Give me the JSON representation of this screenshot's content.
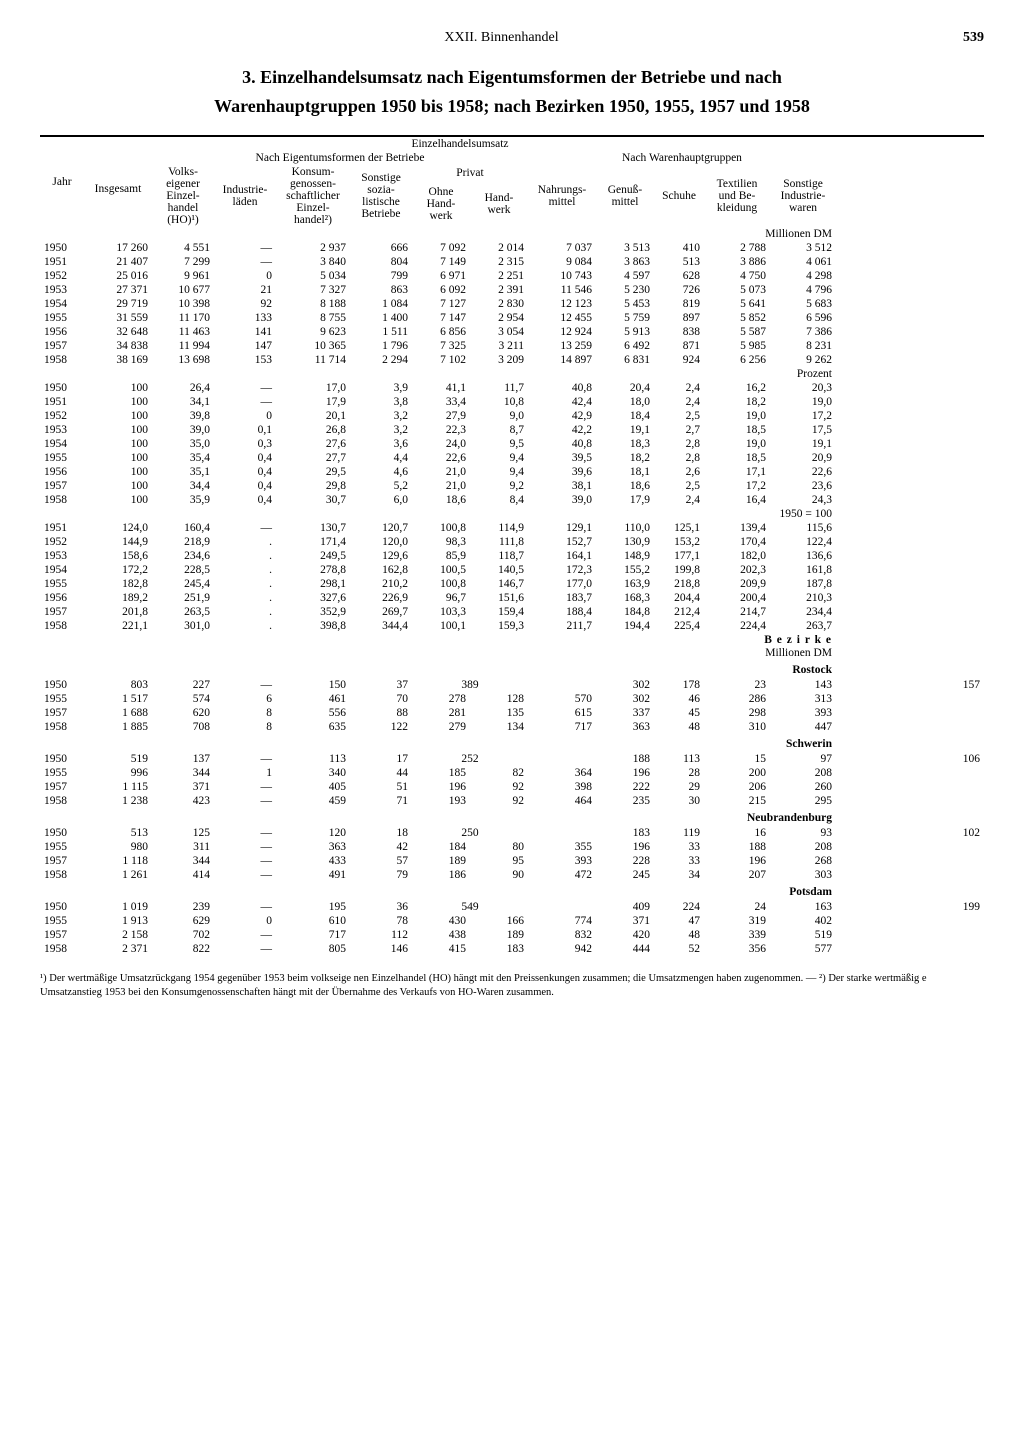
{
  "page": {
    "chapter": "XXII. Binnenhandel",
    "number": "539"
  },
  "title_line1": "3. Einzelhandelsumsatz nach Eigentumsformen der Betriebe und nach",
  "title_line2": "Warenhauptgruppen 1950 bis 1958; nach Bezirken 1950, 1955, 1957 und 1958",
  "headers": {
    "group_total": "Einzelhandelsumsatz",
    "eigentum": "Nach Eigentumsformen der Betriebe",
    "warengruppen": "Nach Warenhauptgruppen",
    "jahr": "Jahr",
    "insgesamt": "Insgesamt",
    "ho": "Volks-\neigener\nEinzel-\nhandel\n(HO)¹)",
    "industrie": "Industrie-\nläden",
    "konsum": "Konsum-\ngenossen-\nschaftlicher\nEinzel-\nhandel²)",
    "sozial": "Sonstige\nsozia-\nlistische\nBetriebe",
    "privat": "Privat",
    "ohne_hand": "Ohne\nHand-\nwerk",
    "hand": "Hand-\nwerk",
    "nahrung": "Nahrungs-\nmittel",
    "genuss": "Genuß-\nmittel",
    "schuhe": "Schuhe",
    "textil": "Textilien\nund Be-\nkleidung",
    "sonstige": "Sonstige\nIndustrie-\nwaren"
  },
  "sections": {
    "mio_dm": "Millionen DM",
    "prozent": "Prozent",
    "index": "1950 = 100",
    "bezirke": "B e z i r k e",
    "bezirke_sub": "Millionen DM",
    "rostock": "Rostock",
    "schwerin": "Schwerin",
    "neubrandenburg": "Neubrandenburg",
    "potsdam": "Potsdam"
  },
  "mio_dm": [
    [
      "1950",
      "17 260",
      "4 551",
      "—",
      "2 937",
      "666",
      "7 092",
      "2 014",
      "7 037",
      "3 513",
      "410",
      "2 788",
      "3 512"
    ],
    [
      "1951",
      "21 407",
      "7 299",
      "—",
      "3 840",
      "804",
      "7 149",
      "2 315",
      "9 084",
      "3 863",
      "513",
      "3 886",
      "4 061"
    ],
    [
      "1952",
      "25 016",
      "9 961",
      "0",
      "5 034",
      "799",
      "6 971",
      "2 251",
      "10 743",
      "4 597",
      "628",
      "4 750",
      "4 298"
    ],
    [
      "1953",
      "27 371",
      "10 677",
      "21",
      "7 327",
      "863",
      "6 092",
      "2 391",
      "11 546",
      "5 230",
      "726",
      "5 073",
      "4 796"
    ],
    [
      "1954",
      "29 719",
      "10 398",
      "92",
      "8 188",
      "1 084",
      "7 127",
      "2 830",
      "12 123",
      "5 453",
      "819",
      "5 641",
      "5 683"
    ],
    [
      "1955",
      "31 559",
      "11 170",
      "133",
      "8 755",
      "1 400",
      "7 147",
      "2 954",
      "12 455",
      "5 759",
      "897",
      "5 852",
      "6 596"
    ],
    [
      "1956",
      "32 648",
      "11 463",
      "141",
      "9 623",
      "1 511",
      "6 856",
      "3 054",
      "12 924",
      "5 913",
      "838",
      "5 587",
      "7 386"
    ],
    [
      "1957",
      "34 838",
      "11 994",
      "147",
      "10 365",
      "1 796",
      "7 325",
      "3 211",
      "13 259",
      "6 492",
      "871",
      "5 985",
      "8 231"
    ],
    [
      "1958",
      "38 169",
      "13 698",
      "153",
      "11 714",
      "2 294",
      "7 102",
      "3 209",
      "14 897",
      "6 831",
      "924",
      "6 256",
      "9 262"
    ]
  ],
  "prozent": [
    [
      "1950",
      "100",
      "26,4",
      "—",
      "17,0",
      "3,9",
      "41,1",
      "11,7",
      "40,8",
      "20,4",
      "2,4",
      "16,2",
      "20,3"
    ],
    [
      "1951",
      "100",
      "34,1",
      "—",
      "17,9",
      "3,8",
      "33,4",
      "10,8",
      "42,4",
      "18,0",
      "2,4",
      "18,2",
      "19,0"
    ],
    [
      "1952",
      "100",
      "39,8",
      "0",
      "20,1",
      "3,2",
      "27,9",
      "9,0",
      "42,9",
      "18,4",
      "2,5",
      "19,0",
      "17,2"
    ],
    [
      "1953",
      "100",
      "39,0",
      "0,1",
      "26,8",
      "3,2",
      "22,3",
      "8,7",
      "42,2",
      "19,1",
      "2,7",
      "18,5",
      "17,5"
    ],
    [
      "1954",
      "100",
      "35,0",
      "0,3",
      "27,6",
      "3,6",
      "24,0",
      "9,5",
      "40,8",
      "18,3",
      "2,8",
      "19,0",
      "19,1"
    ],
    [
      "1955",
      "100",
      "35,4",
      "0,4",
      "27,7",
      "4,4",
      "22,6",
      "9,4",
      "39,5",
      "18,2",
      "2,8",
      "18,5",
      "20,9"
    ],
    [
      "1956",
      "100",
      "35,1",
      "0,4",
      "29,5",
      "4,6",
      "21,0",
      "9,4",
      "39,6",
      "18,1",
      "2,6",
      "17,1",
      "22,6"
    ],
    [
      "1957",
      "100",
      "34,4",
      "0,4",
      "29,8",
      "5,2",
      "21,0",
      "9,2",
      "38,1",
      "18,6",
      "2,5",
      "17,2",
      "23,6"
    ],
    [
      "1958",
      "100",
      "35,9",
      "0,4",
      "30,7",
      "6,0",
      "18,6",
      "8,4",
      "39,0",
      "17,9",
      "2,4",
      "16,4",
      "24,3"
    ]
  ],
  "index": [
    [
      "1951",
      "124,0",
      "160,4",
      "—",
      "130,7",
      "120,7",
      "100,8",
      "114,9",
      "129,1",
      "110,0",
      "125,1",
      "139,4",
      "115,6"
    ],
    [
      "1952",
      "144,9",
      "218,9",
      ".",
      "171,4",
      "120,0",
      "98,3",
      "111,8",
      "152,7",
      "130,9",
      "153,2",
      "170,4",
      "122,4"
    ],
    [
      "1953",
      "158,6",
      "234,6",
      ".",
      "249,5",
      "129,6",
      "85,9",
      "118,7",
      "164,1",
      "148,9",
      "177,1",
      "182,0",
      "136,6"
    ],
    [
      "1954",
      "172,2",
      "228,5",
      ".",
      "278,8",
      "162,8",
      "100,5",
      "140,5",
      "172,3",
      "155,2",
      "199,8",
      "202,3",
      "161,8"
    ],
    [
      "1955",
      "182,8",
      "245,4",
      ".",
      "298,1",
      "210,2",
      "100,8",
      "146,7",
      "177,0",
      "163,9",
      "218,8",
      "209,9",
      "187,8"
    ],
    [
      "1956",
      "189,2",
      "251,9",
      ".",
      "327,6",
      "226,9",
      "96,7",
      "151,6",
      "183,7",
      "168,3",
      "204,4",
      "200,4",
      "210,3"
    ],
    [
      "1957",
      "201,8",
      "263,5",
      ".",
      "352,9",
      "269,7",
      "103,3",
      "159,4",
      "188,4",
      "184,8",
      "212,4",
      "214,7",
      "234,4"
    ],
    [
      "1958",
      "221,1",
      "301,0",
      ".",
      "398,8",
      "344,4",
      "100,1",
      "159,3",
      "211,7",
      "194,4",
      "225,4",
      "224,4",
      "263,7"
    ]
  ],
  "bezirke": {
    "rostock": [
      [
        "1950",
        "803",
        "227",
        "—",
        "150",
        "37",
        "389",
        "",
        "302",
        "178",
        "23",
        "143",
        "157"
      ],
      [
        "1955",
        "1 517",
        "574",
        "6",
        "461",
        "70",
        "278",
        "128",
        "570",
        "302",
        "46",
        "286",
        "313"
      ],
      [
        "1957",
        "1 688",
        "620",
        "8",
        "556",
        "88",
        "281",
        "135",
        "615",
        "337",
        "45",
        "298",
        "393"
      ],
      [
        "1958",
        "1 885",
        "708",
        "8",
        "635",
        "122",
        "279",
        "134",
        "717",
        "363",
        "48",
        "310",
        "447"
      ]
    ],
    "schwerin": [
      [
        "1950",
        "519",
        "137",
        "—",
        "113",
        "17",
        "252",
        "",
        "188",
        "113",
        "15",
        "97",
        "106"
      ],
      [
        "1955",
        "996",
        "344",
        "1",
        "340",
        "44",
        "185",
        "82",
        "364",
        "196",
        "28",
        "200",
        "208"
      ],
      [
        "1957",
        "1 115",
        "371",
        "—",
        "405",
        "51",
        "196",
        "92",
        "398",
        "222",
        "29",
        "206",
        "260"
      ],
      [
        "1958",
        "1 238",
        "423",
        "—",
        "459",
        "71",
        "193",
        "92",
        "464",
        "235",
        "30",
        "215",
        "295"
      ]
    ],
    "neubrandenburg": [
      [
        "1950",
        "513",
        "125",
        "—",
        "120",
        "18",
        "250",
        "",
        "183",
        "119",
        "16",
        "93",
        "102"
      ],
      [
        "1955",
        "980",
        "311",
        "—",
        "363",
        "42",
        "184",
        "80",
        "355",
        "196",
        "33",
        "188",
        "208"
      ],
      [
        "1957",
        "1 118",
        "344",
        "—",
        "433",
        "57",
        "189",
        "95",
        "393",
        "228",
        "33",
        "196",
        "268"
      ],
      [
        "1958",
        "1 261",
        "414",
        "—",
        "491",
        "79",
        "186",
        "90",
        "472",
        "245",
        "34",
        "207",
        "303"
      ]
    ],
    "potsdam": [
      [
        "1950",
        "1 019",
        "239",
        "—",
        "195",
        "36",
        "549",
        "",
        "409",
        "224",
        "24",
        "163",
        "199"
      ],
      [
        "1955",
        "1 913",
        "629",
        "0",
        "610",
        "78",
        "430",
        "166",
        "774",
        "371",
        "47",
        "319",
        "402"
      ],
      [
        "1957",
        "2 158",
        "702",
        "—",
        "717",
        "112",
        "438",
        "189",
        "832",
        "420",
        "48",
        "339",
        "519"
      ],
      [
        "1958",
        "2 371",
        "822",
        "—",
        "805",
        "146",
        "415",
        "183",
        "942",
        "444",
        "52",
        "356",
        "577"
      ]
    ]
  },
  "footnotes": {
    "f1": "¹) Der wertmäßige Umsatzrückgang 1954 gegenüber 1953 beim volkseige nen Einzelhandel (HO) hängt mit den Preissenkungen zusammen; die Umsatzmengen haben zugenommen. — ²) Der starke wertmäßig e Umsatzanstieg 1953 bei den Konsumgenossenschaften hängt mit der Übernahme des Verkaufs von HO-Waren zusammen."
  }
}
